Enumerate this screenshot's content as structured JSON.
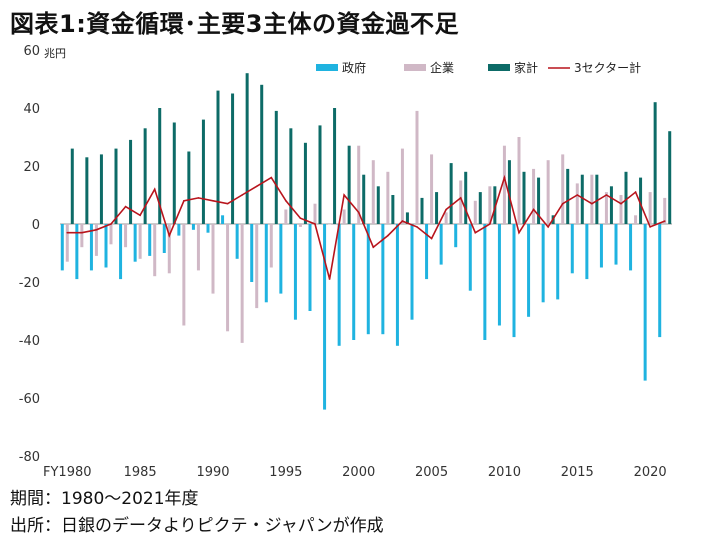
{
  "title": "図表1:資金循環･主要3主体の資金過不足",
  "footer": {
    "period": "期間：1980～2021年度",
    "source": "出所：日銀のデータよりピクテ・ジャパンが作成"
  },
  "chart_data": {
    "type": "bar",
    "unit_label": "兆円",
    "ylim": [
      -80,
      60
    ],
    "yticks": [
      -80,
      -60,
      -40,
      -20,
      0,
      20,
      40,
      60
    ],
    "x_tick_labels": [
      {
        "year": 1980,
        "label": "FY1980"
      },
      {
        "year": 1985,
        "label": "1985"
      },
      {
        "year": 1990,
        "label": "1990"
      },
      {
        "year": 1995,
        "label": "1995"
      },
      {
        "year": 2000,
        "label": "2000"
      },
      {
        "year": 2005,
        "label": "2005"
      },
      {
        "year": 2010,
        "label": "2010"
      },
      {
        "year": 2015,
        "label": "2015"
      },
      {
        "year": 2020,
        "label": "2020"
      }
    ],
    "legend_position": "top-right",
    "categories": [
      1980,
      1981,
      1982,
      1983,
      1984,
      1985,
      1986,
      1987,
      1988,
      1989,
      1990,
      1991,
      1992,
      1993,
      1994,
      1995,
      1996,
      1997,
      1998,
      1999,
      2000,
      2001,
      2002,
      2003,
      2004,
      2005,
      2006,
      2007,
      2008,
      2009,
      2010,
      2011,
      2012,
      2013,
      2014,
      2015,
      2016,
      2017,
      2018,
      2019,
      2020,
      2021
    ],
    "series": [
      {
        "name": "政府",
        "kind": "bar",
        "color": "#1fb3e0",
        "values": [
          -16,
          -19,
          -16,
          -15,
          -19,
          -13,
          -11,
          -10,
          -4,
          -2,
          -3,
          3,
          -12,
          -20,
          -27,
          -24,
          -33,
          -30,
          -64,
          -42,
          -40,
          -38,
          -38,
          -42,
          -33,
          -19,
          -14,
          -8,
          -23,
          -40,
          -35,
          -39,
          -32,
          -27,
          -26,
          -17,
          -19,
          -15,
          -14,
          -16,
          -54,
          -39
        ]
      },
      {
        "name": "企業",
        "kind": "bar",
        "color": "#d0b8c6",
        "values": [
          -13,
          -8,
          -11,
          -7,
          -8,
          -12,
          -18,
          -17,
          -35,
          -16,
          -24,
          -37,
          -41,
          -29,
          -15,
          5,
          -1,
          7,
          0,
          5,
          27,
          22,
          18,
          26,
          39,
          24,
          4,
          15,
          8,
          13,
          27,
          30,
          19,
          22,
          24,
          14,
          17,
          11,
          10,
          3,
          11,
          9
        ]
      },
      {
        "name": "家計",
        "kind": "bar",
        "color": "#0d6b67",
        "values": [
          26,
          23,
          24,
          26,
          29,
          33,
          40,
          35,
          25,
          36,
          46,
          45,
          52,
          48,
          39,
          33,
          28,
          34,
          40,
          27,
          17,
          13,
          10,
          4,
          9,
          11,
          21,
          18,
          11,
          13,
          22,
          18,
          16,
          3,
          19,
          17,
          17,
          13,
          18,
          16,
          42,
          32
        ]
      },
      {
        "name": "3セクター計",
        "kind": "line",
        "color": "#b8141c",
        "values": [
          -3,
          -3,
          -2,
          0,
          6,
          3,
          12,
          -4,
          8,
          9,
          8,
          7,
          10,
          13,
          16,
          8,
          2,
          0,
          -19,
          10,
          4,
          -8,
          -4,
          1,
          -1,
          -5,
          5,
          9,
          -3,
          0,
          16,
          -3,
          5,
          -1,
          7,
          10,
          7,
          10,
          7,
          11,
          -1,
          1
        ]
      }
    ]
  }
}
